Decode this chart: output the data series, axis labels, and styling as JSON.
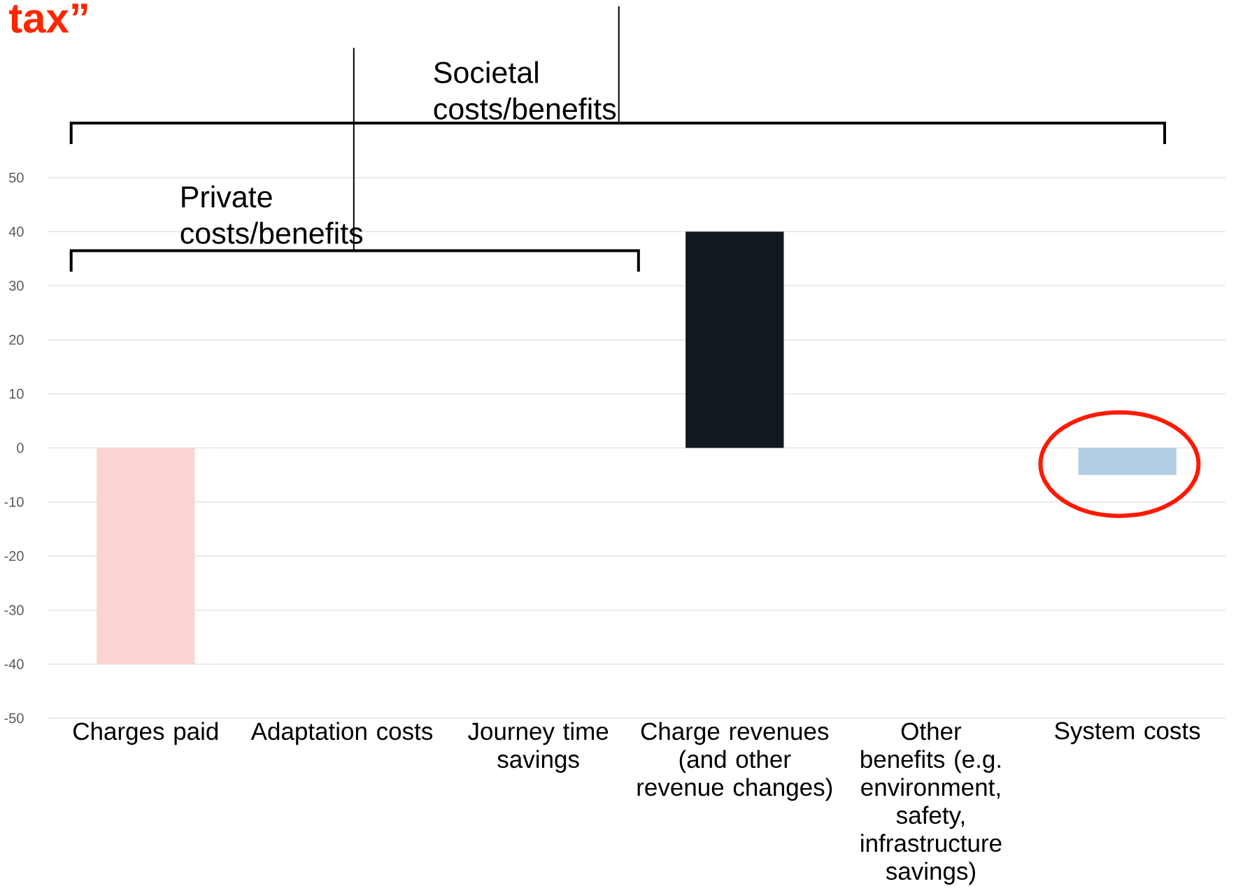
{
  "chart_data": {
    "type": "bar",
    "title": "tax”",
    "categories": [
      "Charges paid",
      "Adaptation costs",
      "Journey time savings",
      "Charge revenues (and other revenue changes)",
      "Other benefits (e.g. environment, safety, infrastructure savings)",
      "System costs"
    ],
    "values": [
      -40,
      null,
      null,
      40,
      null,
      -5
    ],
    "colors": [
      "#fcd3d3",
      null,
      null,
      "#0f191f",
      null,
      "#b3cde4"
    ],
    "ylim": [
      -50,
      50
    ],
    "yticks": [
      -50,
      -40,
      -30,
      -20,
      -10,
      0,
      10,
      20,
      30,
      40,
      50
    ],
    "grid": "y",
    "annotations": [
      "Societal costs/benefits",
      "Private costs/benefits"
    ]
  }
}
